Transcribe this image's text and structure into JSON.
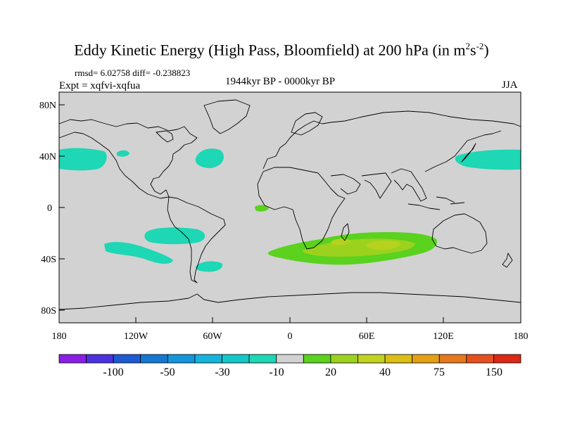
{
  "title": {
    "text": "Eddy Kinetic Energy (High Pass, Bloomfield) at 200 hPa (in m",
    "sup1": "2",
    "mid": "s",
    "sup2": "-2",
    "close": ")"
  },
  "stats": {
    "rmsd": "rmsd= 6.02758 diff= -0.238823",
    "expt": "Expt = xqfvi-xqfua"
  },
  "period": "1944kyr BP - 0000kyr BP",
  "season": "JJA",
  "axes": {
    "lat_labels": [
      "80N",
      "40N",
      "0",
      "40S",
      "80S"
    ],
    "lon_labels": [
      "180",
      "120W",
      "60W",
      "0",
      "60E",
      "120E",
      "180"
    ]
  },
  "colorbar": {
    "labels": [
      "-100",
      "-50",
      "-30",
      "-10",
      "20",
      "40",
      "75",
      "150"
    ],
    "colors": [
      "#8a1ee6",
      "#4b32e0",
      "#1e5ad2",
      "#1478d2",
      "#1496dc",
      "#14b4dc",
      "#14c8c8",
      "#1ed7b4",
      "#d2d2d2",
      "#5ad21e",
      "#9bd21e",
      "#c3d21e",
      "#dcbe14",
      "#e6a014",
      "#e6781e",
      "#e6501e",
      "#dc2814"
    ]
  },
  "colors": {
    "land_ocean": "#d2d2d2",
    "teal": "#1ed7b4",
    "green": "#5ad21e",
    "lightgreen": "#9bd21e",
    "yellowgreen": "#b4d21e"
  }
}
